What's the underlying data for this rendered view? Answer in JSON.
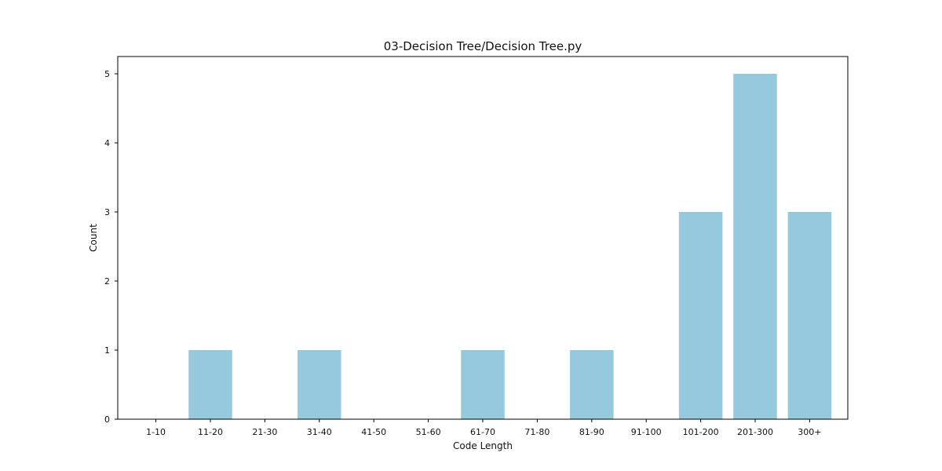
{
  "chart_data": {
    "type": "bar",
    "title": "03-Decision Tree/Decision Tree.py",
    "xlabel": "Code Length",
    "ylabel": "Count",
    "categories": [
      "1-10",
      "11-20",
      "21-30",
      "31-40",
      "41-50",
      "51-60",
      "61-70",
      "71-80",
      "81-90",
      "91-100",
      "101-200",
      "201-300",
      "300+"
    ],
    "values": [
      0,
      1,
      0,
      1,
      0,
      0,
      1,
      0,
      1,
      0,
      3,
      5,
      3
    ],
    "ylim": [
      0,
      5.25
    ],
    "yticks": [
      0,
      1,
      2,
      3,
      4,
      5
    ],
    "bar_color": "#96c9de",
    "grid": false,
    "legend": "none"
  }
}
